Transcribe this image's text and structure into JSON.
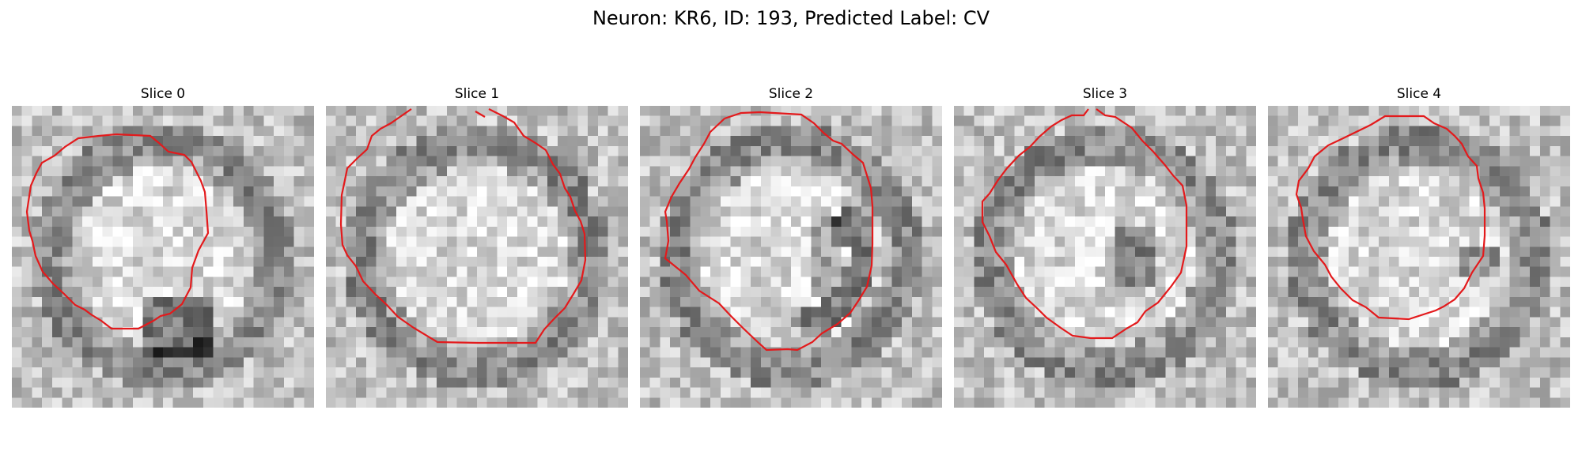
{
  "figure": {
    "title": "Neuron: KR6, ID: 193, Predicted Label: CV",
    "contour_color": "#e31a1c",
    "colormap": "grayscale",
    "panels": [
      {
        "title": "Slice 0"
      },
      {
        "title": "Slice 1"
      },
      {
        "title": "Slice 2"
      },
      {
        "title": "Slice 3"
      },
      {
        "title": "Slice 4"
      }
    ]
  }
}
